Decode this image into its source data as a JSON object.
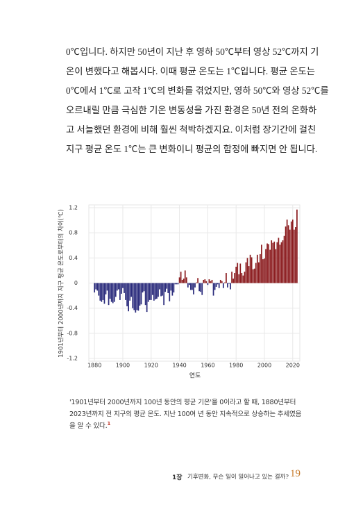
{
  "body": {
    "lines": [
      "0℃입니다. 하지만 50년이 지난 후 영하 50℃부터 영상 52℃까지 기",
      "온이 변했다고 해봅시다. 이때 평균 온도는 1℃입니다. 평균 온도는",
      "0℃에서 1℃로 고작 1℃의 변화를 겪었지만, 영하 50℃와 영상 52℃를",
      "오르내릴 만큼 극심한 기온 변동성을 가진 환경은 50년 전의 온화하",
      "고 서늘했던 환경에 비해 훨씬 척박하겠지요. 이처럼 장기간에 걸친",
      "지구 평균 온도 1℃는 큰 변화이니 평균의 함정에 빠지면 안 됩니다."
    ]
  },
  "chart_data": {
    "type": "bar",
    "x_label": "연도",
    "y_label": "1901년부터 2000년까지 지구 평균 온도로부터의 차이(℃)",
    "x": [
      1880,
      1881,
      1882,
      1883,
      1884,
      1885,
      1886,
      1887,
      1888,
      1889,
      1890,
      1891,
      1892,
      1893,
      1894,
      1895,
      1896,
      1897,
      1898,
      1899,
      1900,
      1901,
      1902,
      1903,
      1904,
      1905,
      1906,
      1907,
      1908,
      1909,
      1910,
      1911,
      1912,
      1913,
      1914,
      1915,
      1916,
      1917,
      1918,
      1919,
      1920,
      1921,
      1922,
      1923,
      1924,
      1925,
      1926,
      1927,
      1928,
      1929,
      1930,
      1931,
      1932,
      1933,
      1934,
      1935,
      1936,
      1937,
      1938,
      1939,
      1940,
      1941,
      1942,
      1943,
      1944,
      1945,
      1946,
      1947,
      1948,
      1949,
      1950,
      1951,
      1952,
      1953,
      1954,
      1955,
      1956,
      1957,
      1958,
      1959,
      1960,
      1961,
      1962,
      1963,
      1964,
      1965,
      1966,
      1967,
      1968,
      1969,
      1970,
      1971,
      1972,
      1973,
      1974,
      1975,
      1976,
      1977,
      1978,
      1979,
      1980,
      1981,
      1982,
      1983,
      1984,
      1985,
      1986,
      1987,
      1988,
      1989,
      1990,
      1991,
      1992,
      1993,
      1994,
      1995,
      1996,
      1997,
      1998,
      1999,
      2000,
      2001,
      2002,
      2003,
      2004,
      2005,
      2006,
      2007,
      2008,
      2009,
      2010,
      2011,
      2012,
      2013,
      2014,
      2015,
      2016,
      2017,
      2018,
      2019,
      2020,
      2021,
      2022,
      2023
    ],
    "values": [
      -0.15,
      -0.1,
      -0.12,
      -0.2,
      -0.28,
      -0.3,
      -0.27,
      -0.33,
      -0.18,
      -0.12,
      -0.35,
      -0.25,
      -0.3,
      -0.32,
      -0.3,
      -0.22,
      -0.12,
      -0.1,
      -0.27,
      -0.17,
      -0.08,
      -0.16,
      -0.27,
      -0.37,
      -0.45,
      -0.28,
      -0.22,
      -0.4,
      -0.43,
      -0.47,
      -0.43,
      -0.44,
      -0.36,
      -0.34,
      -0.15,
      -0.13,
      -0.35,
      -0.46,
      -0.3,
      -0.27,
      -0.27,
      -0.19,
      -0.28,
      -0.26,
      -0.25,
      -0.22,
      -0.1,
      -0.21,
      -0.2,
      -0.35,
      -0.14,
      -0.09,
      -0.16,
      -0.29,
      -0.12,
      -0.2,
      -0.15,
      -0.02,
      -0.02,
      -0.02,
      0.09,
      0.18,
      0.05,
      0.07,
      0.2,
      0.09,
      -0.07,
      -0.03,
      -0.11,
      -0.11,
      -0.18,
      -0.07,
      0.01,
      0.08,
      -0.13,
      -0.14,
      -0.19,
      0.05,
      0.06,
      0.03,
      -0.03,
      0.06,
      0.03,
      0.05,
      -0.2,
      -0.11,
      -0.06,
      -0.02,
      -0.08,
      0.05,
      0.03,
      -0.08,
      0.01,
      0.16,
      -0.07,
      -0.01,
      -0.1,
      0.18,
      0.07,
      0.16,
      0.26,
      0.32,
      0.14,
      0.31,
      0.16,
      0.12,
      0.18,
      0.33,
      0.4,
      0.27,
      0.45,
      0.41,
      0.22,
      0.23,
      0.32,
      0.45,
      0.33,
      0.46,
      0.61,
      0.38,
      0.39,
      0.54,
      0.63,
      0.62,
      0.53,
      0.68,
      0.64,
      0.66,
      0.54,
      0.65,
      0.72,
      0.61,
      0.65,
      0.68,
      0.75,
      0.9,
      1.01,
      0.92,
      0.85,
      0.98,
      1.01,
      0.85,
      0.89,
      1.17
    ],
    "positive_color": "#8b1c1f",
    "negative_color": "#2b2c7c",
    "xlim": [
      1876,
      2025
    ],
    "xticks": [
      1880,
      1900,
      1920,
      1940,
      1960,
      1980,
      2000,
      2020
    ],
    "ylim": [
      -1.2,
      1.2
    ],
    "yticks": [
      -1.2,
      -0.8,
      -0.4,
      0,
      0.4,
      0.8,
      1.2
    ],
    "grid": true
  },
  "caption": {
    "lines": [
      "'1901년부터 2000년까지 100년 동안의 평균 기온'을 0이라고 할 때, 1880년부터",
      "2023년까지 전 지구의 평균 온도. 지난 100여 년 동안 지속적으로 상승하는 추세였음",
      "을 알 수 있다."
    ],
    "note": "1"
  },
  "footer": {
    "chapter": "1장",
    "title": "기후변화, 무슨 일이 일어나고 있는 걸까?",
    "page": "19"
  }
}
